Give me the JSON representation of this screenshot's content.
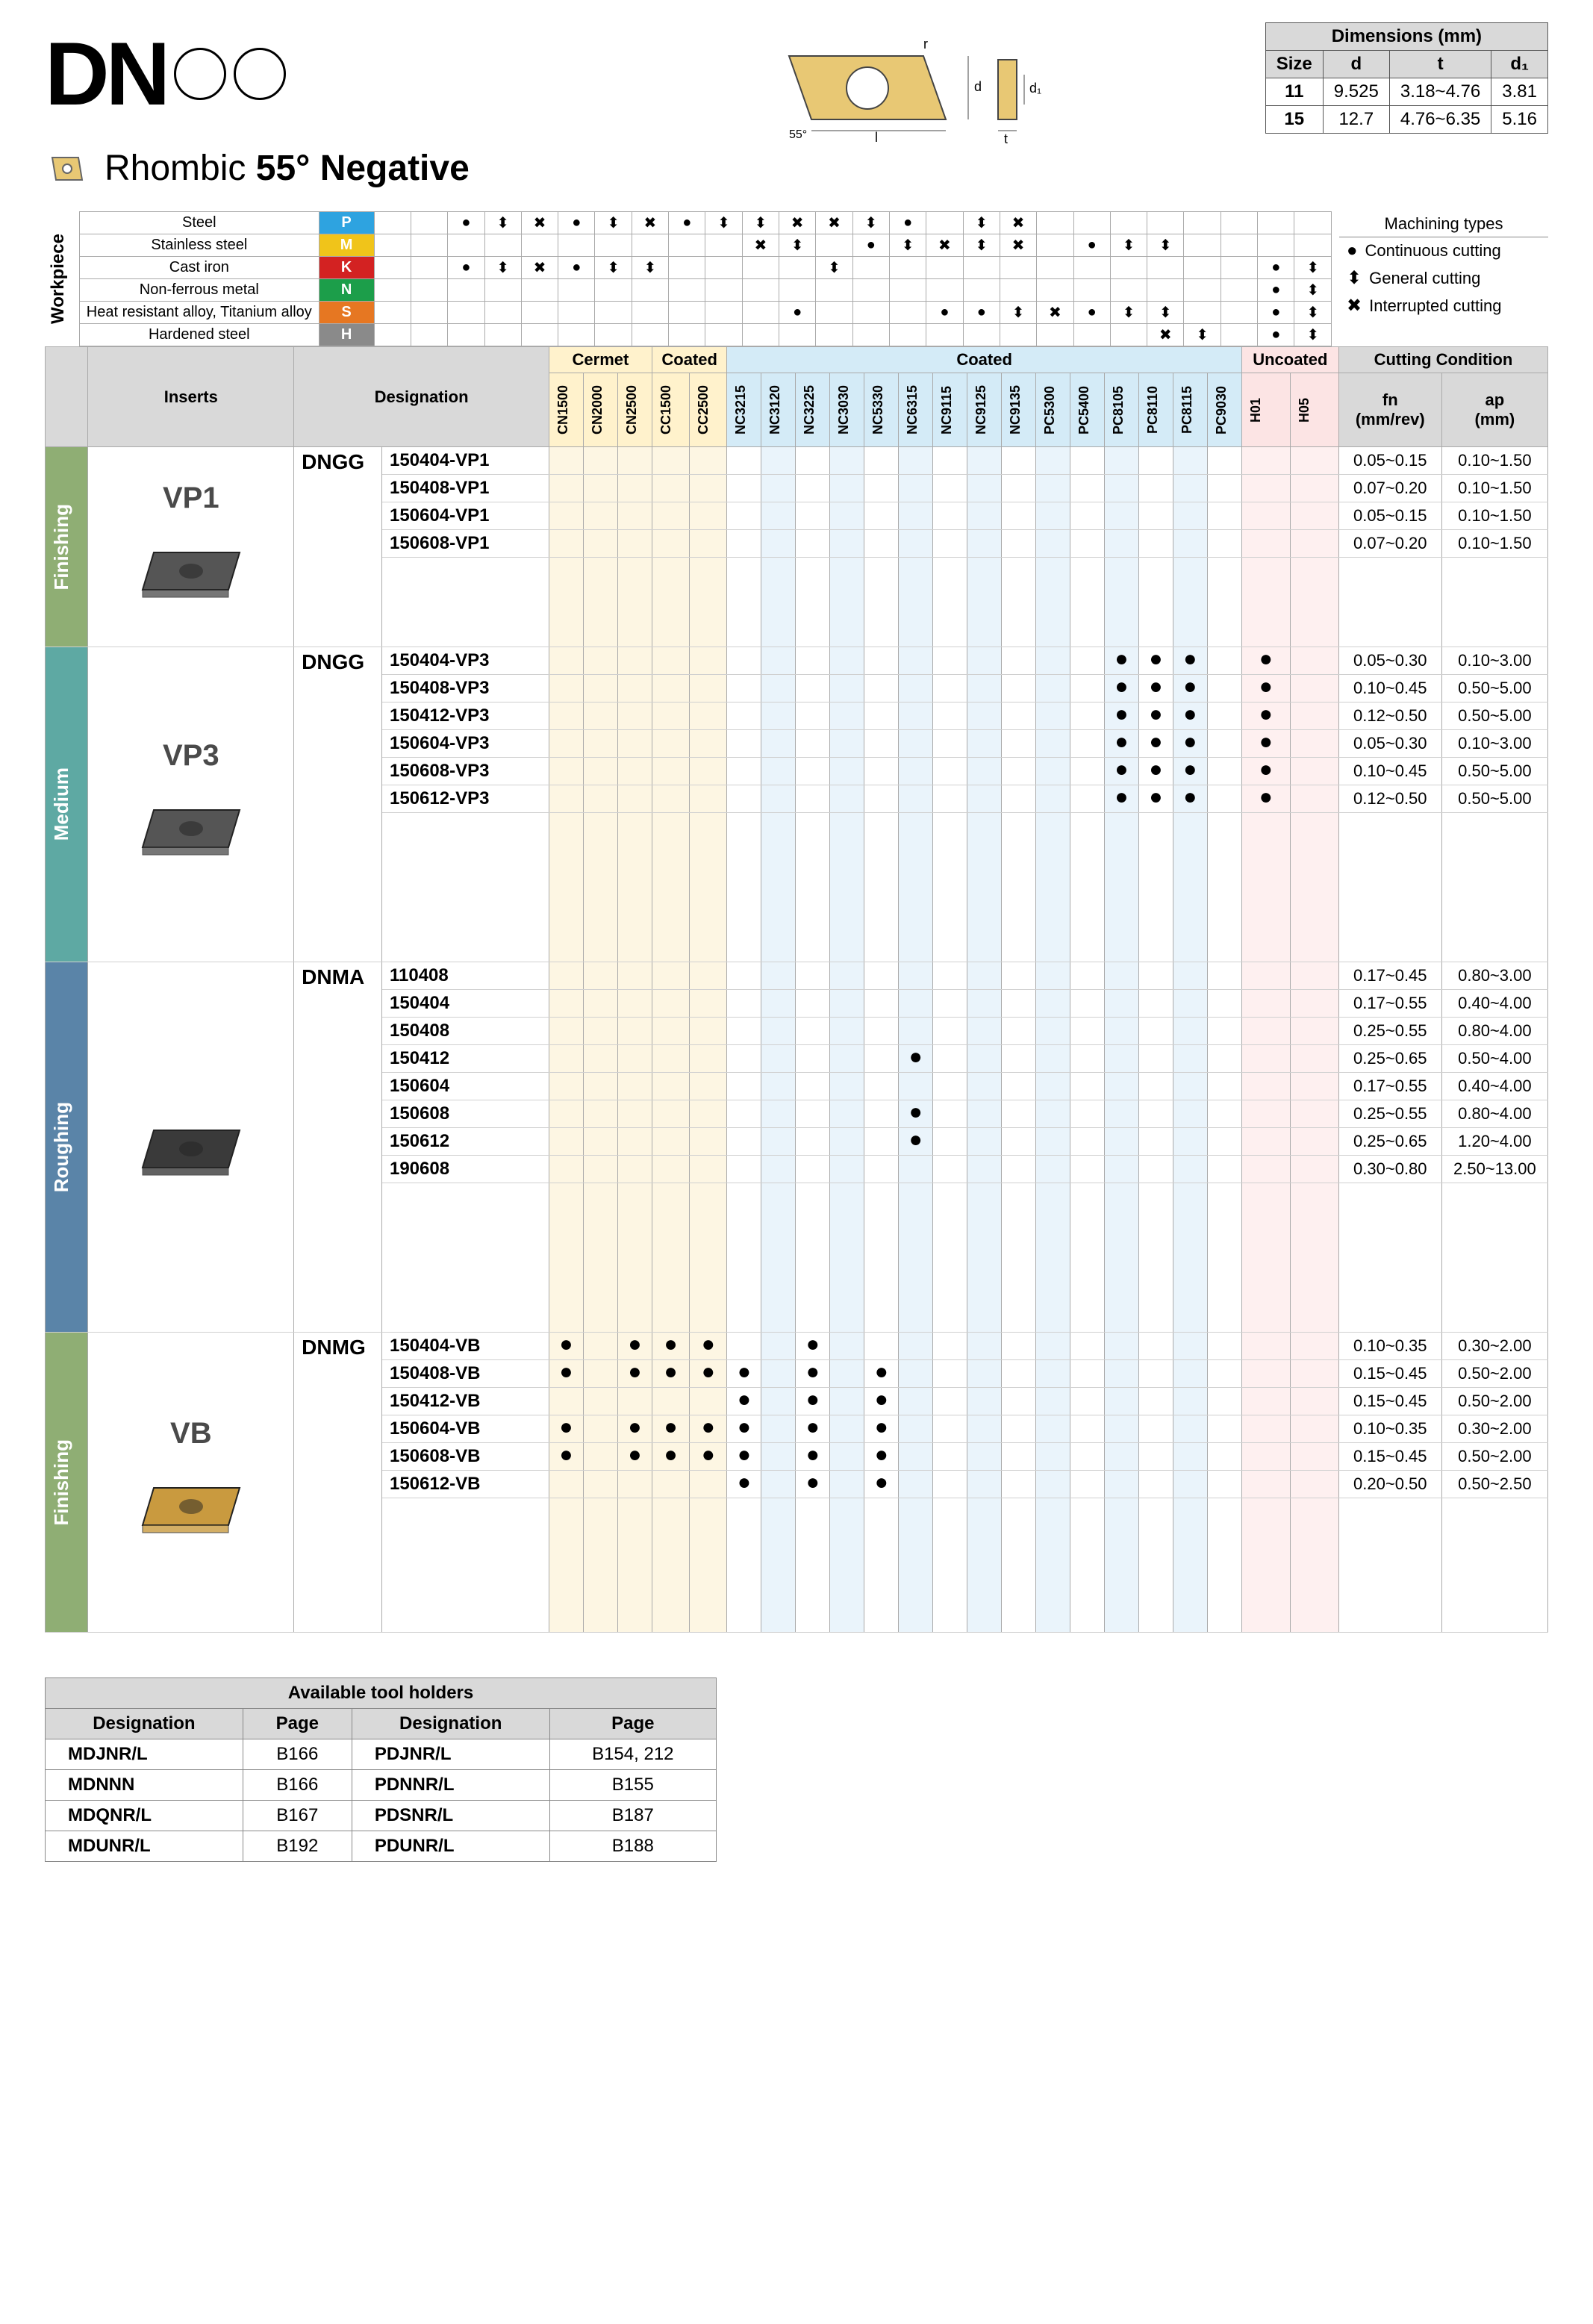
{
  "title": {
    "code": "DN",
    "shape_label": "Rhombic",
    "angle": "55°",
    "type": "Negative"
  },
  "diagram": {
    "angle_label": "55°",
    "dim_l": "l",
    "dim_d": "d",
    "dim_r": "r",
    "dim_t": "t",
    "dim_d1": "d₁"
  },
  "dimensions_table": {
    "title": "Dimensions (mm)",
    "cols": [
      "Size",
      "d",
      "t",
      "d₁"
    ],
    "rows": [
      [
        "11",
        "9.525",
        "3.18~4.76",
        "3.81"
      ],
      [
        "15",
        "12.7",
        "4.76~6.35",
        "5.16"
      ]
    ]
  },
  "workpiece": {
    "label": "Workpiece",
    "rows": [
      {
        "name": "Steel",
        "code": "P",
        "color": "#2ea3e0"
      },
      {
        "name": "Stainless steel",
        "code": "M",
        "color": "#f0c41a"
      },
      {
        "name": "Cast iron",
        "code": "K",
        "color": "#d32222"
      },
      {
        "name": "Non-ferrous metal",
        "code": "N",
        "color": "#1c9e4a"
      },
      {
        "name": "Heat resistant alloy, Titanium alloy",
        "code": "S",
        "color": "#e67722"
      },
      {
        "name": "Hardened steel",
        "code": "H",
        "color": "#8a8a8a"
      }
    ],
    "columns": 26,
    "marks": {
      "P": {
        "2": "●",
        "3": "⬍",
        "4": "✖",
        "5": "●",
        "6": "⬍",
        "7": "✖",
        "8": "●",
        "9": "⬍",
        "10": "⬍",
        "11": "✖",
        "12": "✖",
        "13": "⬍",
        "14": "●",
        "16": "⬍",
        "17": "✖"
      },
      "M": {
        "10": "✖",
        "11": "⬍",
        "13": "●",
        "14": "⬍",
        "15": "✖",
        "16": "⬍",
        "17": "✖",
        "19": "●",
        "20": "⬍",
        "21": "⬍"
      },
      "K": {
        "2": "●",
        "3": "⬍",
        "4": "✖",
        "5": "●",
        "6": "⬍",
        "7": "⬍",
        "12": "⬍",
        "24": "●",
        "25": "⬍"
      },
      "N": {
        "24": "●",
        "25": "⬍"
      },
      "S": {
        "11": "●",
        "15": "●",
        "16": "●",
        "17": "⬍",
        "18": "✖",
        "19": "●",
        "20": "⬍",
        "21": "⬍",
        "24": "●",
        "25": "⬍"
      },
      "H": {
        "21": "✖",
        "22": "⬍",
        "24": "●",
        "25": "⬍"
      }
    }
  },
  "machining_types": {
    "title": "Machining types",
    "items": [
      {
        "sym": "●",
        "label": "Continuous cutting"
      },
      {
        "sym": "⬍",
        "label": "General cutting"
      },
      {
        "sym": "✖",
        "label": "Interrupted cutting"
      }
    ]
  },
  "main_header": {
    "inserts": "Inserts",
    "designation": "Designation",
    "cermet": "Cermet",
    "coated": "Coated",
    "coated2": "Coated",
    "uncoated": "Uncoated",
    "cutcond": "Cutting Condition",
    "fn": "fn",
    "fn_unit": "(mm/rev)",
    "ap": "ap",
    "ap_unit": "(mm)"
  },
  "grades": {
    "cermet": [
      "CN1500",
      "CN2000",
      "CN2500"
    ],
    "coated1": [
      "CC1500",
      "CC2500"
    ],
    "coated2": [
      "NC3215",
      "NC3120",
      "NC3225",
      "NC3030",
      "NC5330",
      "NC6315",
      "NC9115",
      "NC9125",
      "NC9135",
      "PC5300",
      "PC5400",
      "PC8105",
      "PC8110",
      "PC8115",
      "PC9030"
    ],
    "uncoated": [
      "H01",
      "H05"
    ]
  },
  "sections": [
    {
      "category": "Finishing",
      "cat_color": "finishing",
      "insert_name": "VP1",
      "shape_color": "#555555",
      "desig_code": "DNGG",
      "rows": [
        {
          "d": "150404-VP1",
          "fn": "0.05~0.15",
          "ap": "0.10~1.50"
        },
        {
          "d": "150408-VP1",
          "fn": "0.07~0.20",
          "ap": "0.10~1.50"
        },
        {
          "d": "150604-VP1",
          "fn": "0.05~0.15",
          "ap": "0.10~1.50"
        },
        {
          "d": "150608-VP1",
          "fn": "0.07~0.20",
          "ap": "0.10~1.50"
        }
      ],
      "spacer_height": 120
    },
    {
      "category": "Medium",
      "cat_color": "medium",
      "insert_name": "VP3",
      "shape_color": "#555555",
      "desig_code": "DNGG",
      "rows": [
        {
          "d": "150404-VP3",
          "fn": "0.05~0.30",
          "ap": "0.10~3.00",
          "dots": {
            "PC8105": 1,
            "PC8110": 1,
            "PC8115": 1,
            "H01": 1
          }
        },
        {
          "d": "150408-VP3",
          "fn": "0.10~0.45",
          "ap": "0.50~5.00",
          "dots": {
            "PC8105": 1,
            "PC8110": 1,
            "PC8115": 1,
            "H01": 1
          }
        },
        {
          "d": "150412-VP3",
          "fn": "0.12~0.50",
          "ap": "0.50~5.00",
          "dots": {
            "PC8105": 1,
            "PC8110": 1,
            "PC8115": 1,
            "H01": 1
          }
        },
        {
          "d": "150604-VP3",
          "fn": "0.05~0.30",
          "ap": "0.10~3.00",
          "dots": {
            "PC8105": 1,
            "PC8110": 1,
            "PC8115": 1,
            "H01": 1
          }
        },
        {
          "d": "150608-VP3",
          "fn": "0.10~0.45",
          "ap": "0.50~5.00",
          "dots": {
            "PC8105": 1,
            "PC8110": 1,
            "PC8115": 1,
            "H01": 1
          }
        },
        {
          "d": "150612-VP3",
          "fn": "0.12~0.50",
          "ap": "0.50~5.00",
          "dots": {
            "PC8105": 1,
            "PC8110": 1,
            "PC8115": 1,
            "H01": 1
          }
        }
      ],
      "spacer_height": 200
    },
    {
      "category": "Roughing",
      "cat_color": "roughing",
      "insert_name": "",
      "shape_color": "#3a3a3a",
      "desig_code": "DNMA",
      "rows": [
        {
          "d": "110408",
          "fn": "0.17~0.45",
          "ap": "0.80~3.00"
        },
        {
          "d": "150404",
          "fn": "0.17~0.55",
          "ap": "0.40~4.00"
        },
        {
          "d": "150408",
          "fn": "0.25~0.55",
          "ap": "0.80~4.00"
        },
        {
          "d": "150412",
          "fn": "0.25~0.65",
          "ap": "0.50~4.00",
          "dots": {
            "NC6315": 1
          }
        },
        {
          "d": "150604",
          "fn": "0.17~0.55",
          "ap": "0.40~4.00"
        },
        {
          "d": "150608",
          "fn": "0.25~0.55",
          "ap": "0.80~4.00",
          "dots": {
            "NC6315": 1
          }
        },
        {
          "d": "150612",
          "fn": "0.25~0.65",
          "ap": "1.20~4.00",
          "dots": {
            "NC6315": 1
          }
        },
        {
          "d": "190608",
          "fn": "0.30~0.80",
          "ap": "2.50~13.00"
        }
      ],
      "spacer_height": 200
    },
    {
      "category": "Finishing",
      "cat_color": "finishing",
      "insert_name": "VB",
      "shape_color": "#c99a3f",
      "desig_code": "DNMG",
      "rows": [
        {
          "d": "150404-VB",
          "fn": "0.10~0.35",
          "ap": "0.30~2.00",
          "dots": {
            "CN1500": 1,
            "CN2500": 1,
            "CC1500": 1,
            "CC2500": 1,
            "NC3225": 1
          }
        },
        {
          "d": "150408-VB",
          "fn": "0.15~0.45",
          "ap": "0.50~2.00",
          "dots": {
            "CN1500": 1,
            "CN2500": 1,
            "CC1500": 1,
            "CC2500": 1,
            "NC3215": 1,
            "NC3225": 1,
            "NC5330": 1
          }
        },
        {
          "d": "150412-VB",
          "fn": "0.15~0.45",
          "ap": "0.50~2.00",
          "dots": {
            "NC3215": 1,
            "NC3225": 1,
            "NC5330": 1
          }
        },
        {
          "d": "150604-VB",
          "fn": "0.10~0.35",
          "ap": "0.30~2.00",
          "dots": {
            "CN1500": 1,
            "CN2500": 1,
            "CC1500": 1,
            "CC2500": 1,
            "NC3215": 1,
            "NC3225": 1,
            "NC5330": 1
          }
        },
        {
          "d": "150608-VB",
          "fn": "0.15~0.45",
          "ap": "0.50~2.00",
          "dots": {
            "CN1500": 1,
            "CN2500": 1,
            "CC1500": 1,
            "CC2500": 1,
            "NC3215": 1,
            "NC3225": 1,
            "NC5330": 1
          }
        },
        {
          "d": "150612-VB",
          "fn": "0.20~0.50",
          "ap": "0.50~2.50",
          "dots": {
            "NC3215": 1,
            "NC3225": 1,
            "NC5330": 1
          }
        }
      ],
      "spacer_height": 180
    }
  ],
  "holders": {
    "title": "Available tool holders",
    "cols": [
      "Designation",
      "Page",
      "Designation",
      "Page"
    ],
    "rows": [
      [
        "MDJNR/L",
        "B166",
        "PDJNR/L",
        "B154, 212"
      ],
      [
        "MDNNN",
        "B166",
        "PDNNR/L",
        "B155"
      ],
      [
        "MDQNR/L",
        "B167",
        "PDSNR/L",
        "B187"
      ],
      [
        "MDUNR/L",
        "B192",
        "PDUNR/L",
        "B188"
      ]
    ]
  }
}
